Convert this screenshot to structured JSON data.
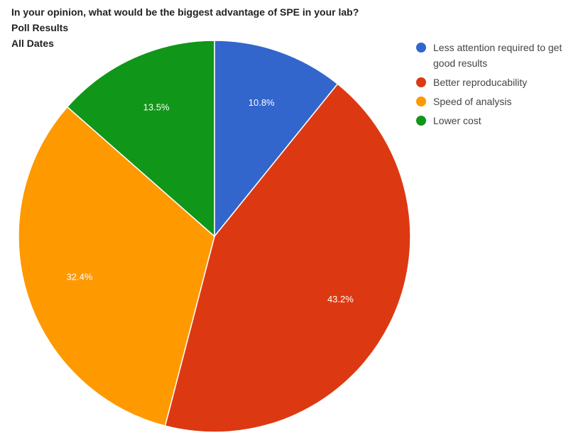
{
  "chart_data": {
    "type": "pie",
    "title": "In your opinion, what would be the biggest advantage of SPE in your lab?",
    "subtitle_lines": [
      "Poll Results",
      "All Dates"
    ],
    "legend_position": "right",
    "slices": [
      {
        "name": "Less attention required to get good results",
        "value": 10.8,
        "label": "10.8%",
        "color": "#3366cc"
      },
      {
        "name": "Better reproducability",
        "value": 43.2,
        "label": "43.2%",
        "color": "#dc3912"
      },
      {
        "name": "Speed of analysis",
        "value": 32.4,
        "label": "32.4%",
        "color": "#ff9900"
      },
      {
        "name": "Lower cost",
        "value": 13.5,
        "label": "13.5%",
        "color": "#109618"
      }
    ]
  }
}
